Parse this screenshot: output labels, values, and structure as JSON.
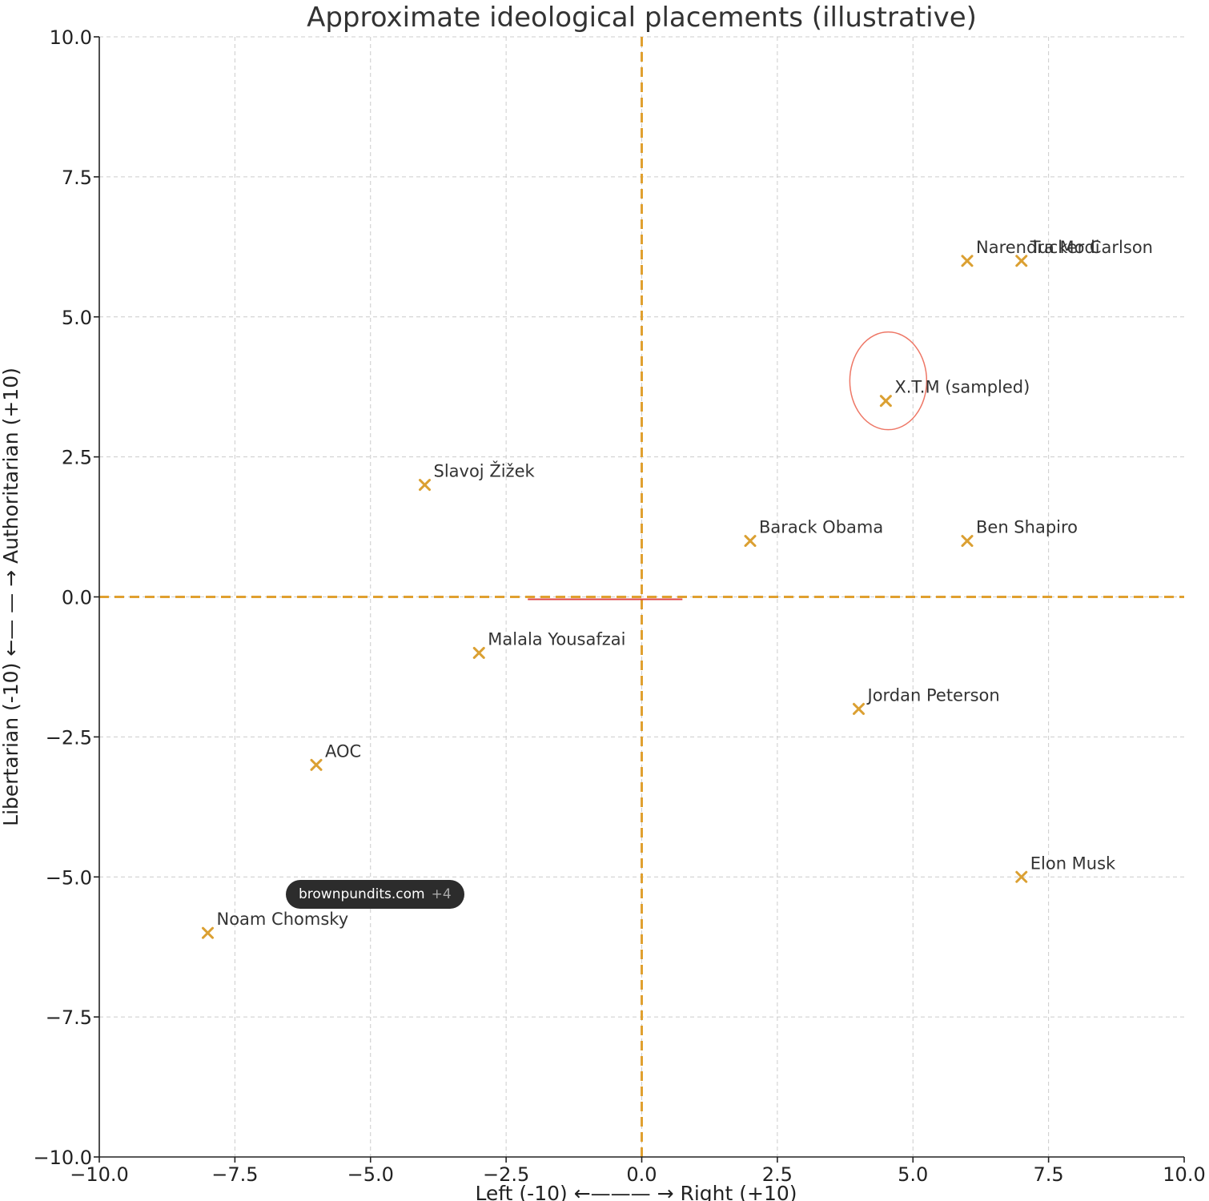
{
  "chart_data": {
    "type": "scatter",
    "title": "Approximate ideological placements (illustrative)",
    "xlabel": "Left (-10) ←——— → Right (+10)",
    "ylabel": "Libertarian (-10) ←— — → Authoritarian (+10)",
    "xlim": [
      -10,
      10
    ],
    "ylim": [
      -10,
      10
    ],
    "xticks": [
      "−10.0",
      "−7.5",
      "−5.0",
      "−2.5",
      "0.0",
      "2.5",
      "5.0",
      "7.5",
      "10.0"
    ],
    "yticks": [
      "10.0",
      "7.5",
      "5.0",
      "2.5",
      "0.0",
      "−2.5",
      "−5.0",
      "−7.5",
      "−10.0"
    ],
    "grid": true,
    "reference_lines": {
      "x": 0,
      "y": 0,
      "color": "#e0a030"
    },
    "marker": "x",
    "marker_color": "#dba032",
    "points": [
      {
        "label": "Narendra Modi",
        "x": 6,
        "y": 6
      },
      {
        "label": "Tucker Carlson",
        "x": 7,
        "y": 6
      },
      {
        "label": "X.T.M (sampled)",
        "x": 4.5,
        "y": 3.5
      },
      {
        "label": "Slavoj Žižek",
        "x": -4,
        "y": 2
      },
      {
        "label": "Barack Obama",
        "x": 2,
        "y": 1
      },
      {
        "label": "Ben Shapiro",
        "x": 6,
        "y": 1
      },
      {
        "label": "Malala Yousafzai",
        "x": -3,
        "y": -1
      },
      {
        "label": "Jordan Peterson",
        "x": 4,
        "y": -2
      },
      {
        "label": "AOC",
        "x": -6,
        "y": -3
      },
      {
        "label": "Elon Musk",
        "x": 7,
        "y": -5
      },
      {
        "label": "Noam Chomsky",
        "x": -8,
        "y": -6
      }
    ],
    "annotations": {
      "circle_around": "X.T.M (sampled)",
      "circle_color": "#ee7766"
    }
  },
  "source_badge": {
    "text": "brownpundits.com",
    "count": "+4"
  }
}
